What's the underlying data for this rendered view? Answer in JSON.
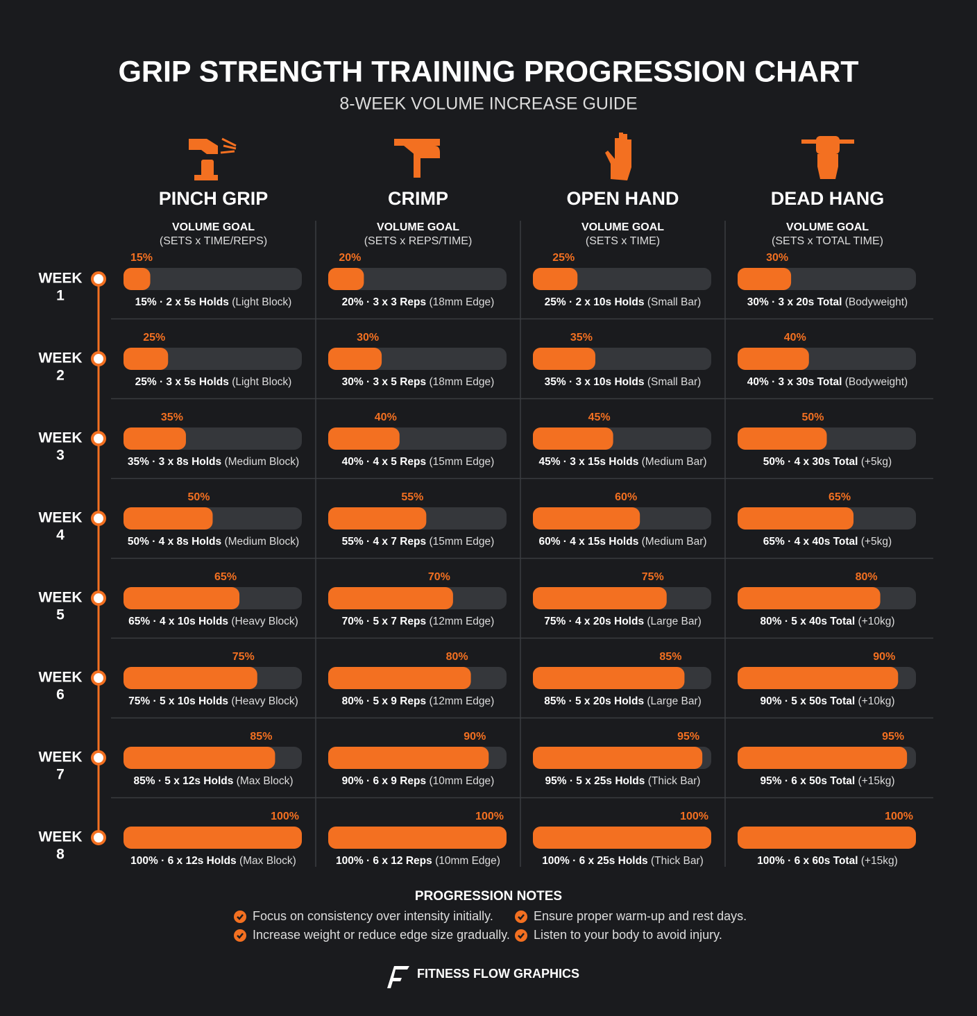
{
  "header": {
    "title": "GRIP STRENGTH TRAINING PROGRESSION CHART",
    "subtitle": "8-WEEK VOLUME INCREASE GUIDE"
  },
  "xlim": [
    0,
    100
  ],
  "weeks": [
    {
      "label": "WEEK",
      "number": 1
    },
    {
      "label": "WEEK",
      "number": 2
    },
    {
      "label": "WEEK",
      "number": 3
    },
    {
      "label": "WEEK",
      "number": 4
    },
    {
      "label": "WEEK",
      "number": 5
    },
    {
      "label": "WEEK",
      "number": 6
    },
    {
      "label": "WEEK",
      "number": 7
    },
    {
      "label": "WEEK",
      "number": 8
    }
  ],
  "exercises": [
    {
      "name": "PINCH GRIP",
      "goal": "VOLUME GOAL",
      "units": "(SETS x TIME/REPS)",
      "color": "#f37021",
      "values": [
        15,
        25,
        35,
        50,
        65,
        75,
        85,
        100
      ],
      "value_labels": [
        "15%",
        "25%",
        "35%",
        "50%",
        "65%",
        "75%",
        "85%",
        "100%"
      ],
      "details": [
        "15% · 2 x 5s Holds",
        "25% · 3 x 5s Holds",
        "35% · 3 x 8s Holds",
        "50% · 4 x 8s Holds",
        "65% · 4 x 10s Holds",
        "75% · 5 x 10s Holds",
        "85% · 5 x 12s Holds",
        "100% · 6 x 12s Holds"
      ],
      "equipment": [
        "(Light Block)",
        "(Light Block)",
        "(Medium Block)",
        "(Medium Block)",
        "(Heavy Block)",
        "(Heavy Block)",
        "(Max Block)",
        "(Max Block)"
      ]
    },
    {
      "name": "CRIMP",
      "goal": "VOLUME GOAL",
      "units": "(SETS x REPS/TIME)",
      "color": "#f37021",
      "values": [
        20,
        30,
        40,
        55,
        70,
        80,
        90,
        100
      ],
      "value_labels": [
        "20%",
        "30%",
        "40%",
        "55%",
        "70%",
        "80%",
        "90%",
        "100%"
      ],
      "details": [
        "20% · 3 x 3 Reps",
        "30% · 3 x 5 Reps",
        "40% · 4 x 5 Reps",
        "55% · 4 x 7 Reps",
        "70% · 5 x 7 Reps",
        "80% · 5 x 9 Reps",
        "90% · 6 x 9 Reps",
        "100% · 6 x 12 Reps"
      ],
      "equipment": [
        "(18mm Edge)",
        "(18mm Edge)",
        "(15mm Edge)",
        "(15mm Edge)",
        "(12mm Edge)",
        "(12mm Edge)",
        "(10mm Edge)",
        "(10mm Edge)"
      ]
    },
    {
      "name": "OPEN HAND",
      "goal": "VOLUME GOAL",
      "units": "(SETS x TIME)",
      "color": "#f37021",
      "values": [
        25,
        35,
        45,
        60,
        75,
        85,
        95,
        100
      ],
      "value_labels": [
        "25%",
        "35%",
        "45%",
        "60%",
        "75%",
        "85%",
        "95%",
        "100%"
      ],
      "details": [
        "25% · 2 x 10s Holds",
        "35% · 3 x 10s Holds",
        "45% · 3 x 15s Holds",
        "60% · 4 x 15s Holds",
        "75% · 4 x 20s Holds",
        "85% · 5 x 20s Holds",
        "95% · 5 x 25s Holds",
        "100% · 6 x 25s Holds"
      ],
      "equipment": [
        "(Small Bar)",
        "(Small Bar)",
        "(Medium Bar)",
        "(Medium Bar)",
        "(Large Bar)",
        "(Large Bar)",
        "(Thick Bar)",
        "(Thick Bar)"
      ]
    },
    {
      "name": "DEAD HANG",
      "goal": "VOLUME GOAL",
      "units": "(SETS x TOTAL TIME)",
      "color": "#f37021",
      "values": [
        30,
        40,
        50,
        65,
        80,
        90,
        95,
        100
      ],
      "value_labels": [
        "30%",
        "40%",
        "50%",
        "65%",
        "80%",
        "90%",
        "95%",
        "100%"
      ],
      "details": [
        "30% · 3 x 20s Total",
        "40% · 3 x 30s Total",
        "50% · 4 x 30s Total",
        "65% · 4 x 40s Total",
        "80% · 5 x 40s Total",
        "90% · 5 x 50s Total",
        "95% · 6 x 50s Total",
        "100% · 6 x 60s Total"
      ],
      "equipment": [
        "(Bodyweight)",
        "(Bodyweight)",
        "(+5kg)",
        "(+5kg)",
        "(+10kg)",
        "(+10kg)",
        "(+15kg)",
        "(+15kg)"
      ]
    }
  ],
  "notes": {
    "title": "PROGRESSION NOTES",
    "items": [
      "Focus on consistency over intensity initially.",
      "Increase weight or reduce edge size gradually.",
      "Ensure proper warm-up and rest days.",
      "Listen to your body to avoid injury."
    ]
  },
  "footer": {
    "brand": "FITNESS FLOW GRAPHICS"
  }
}
